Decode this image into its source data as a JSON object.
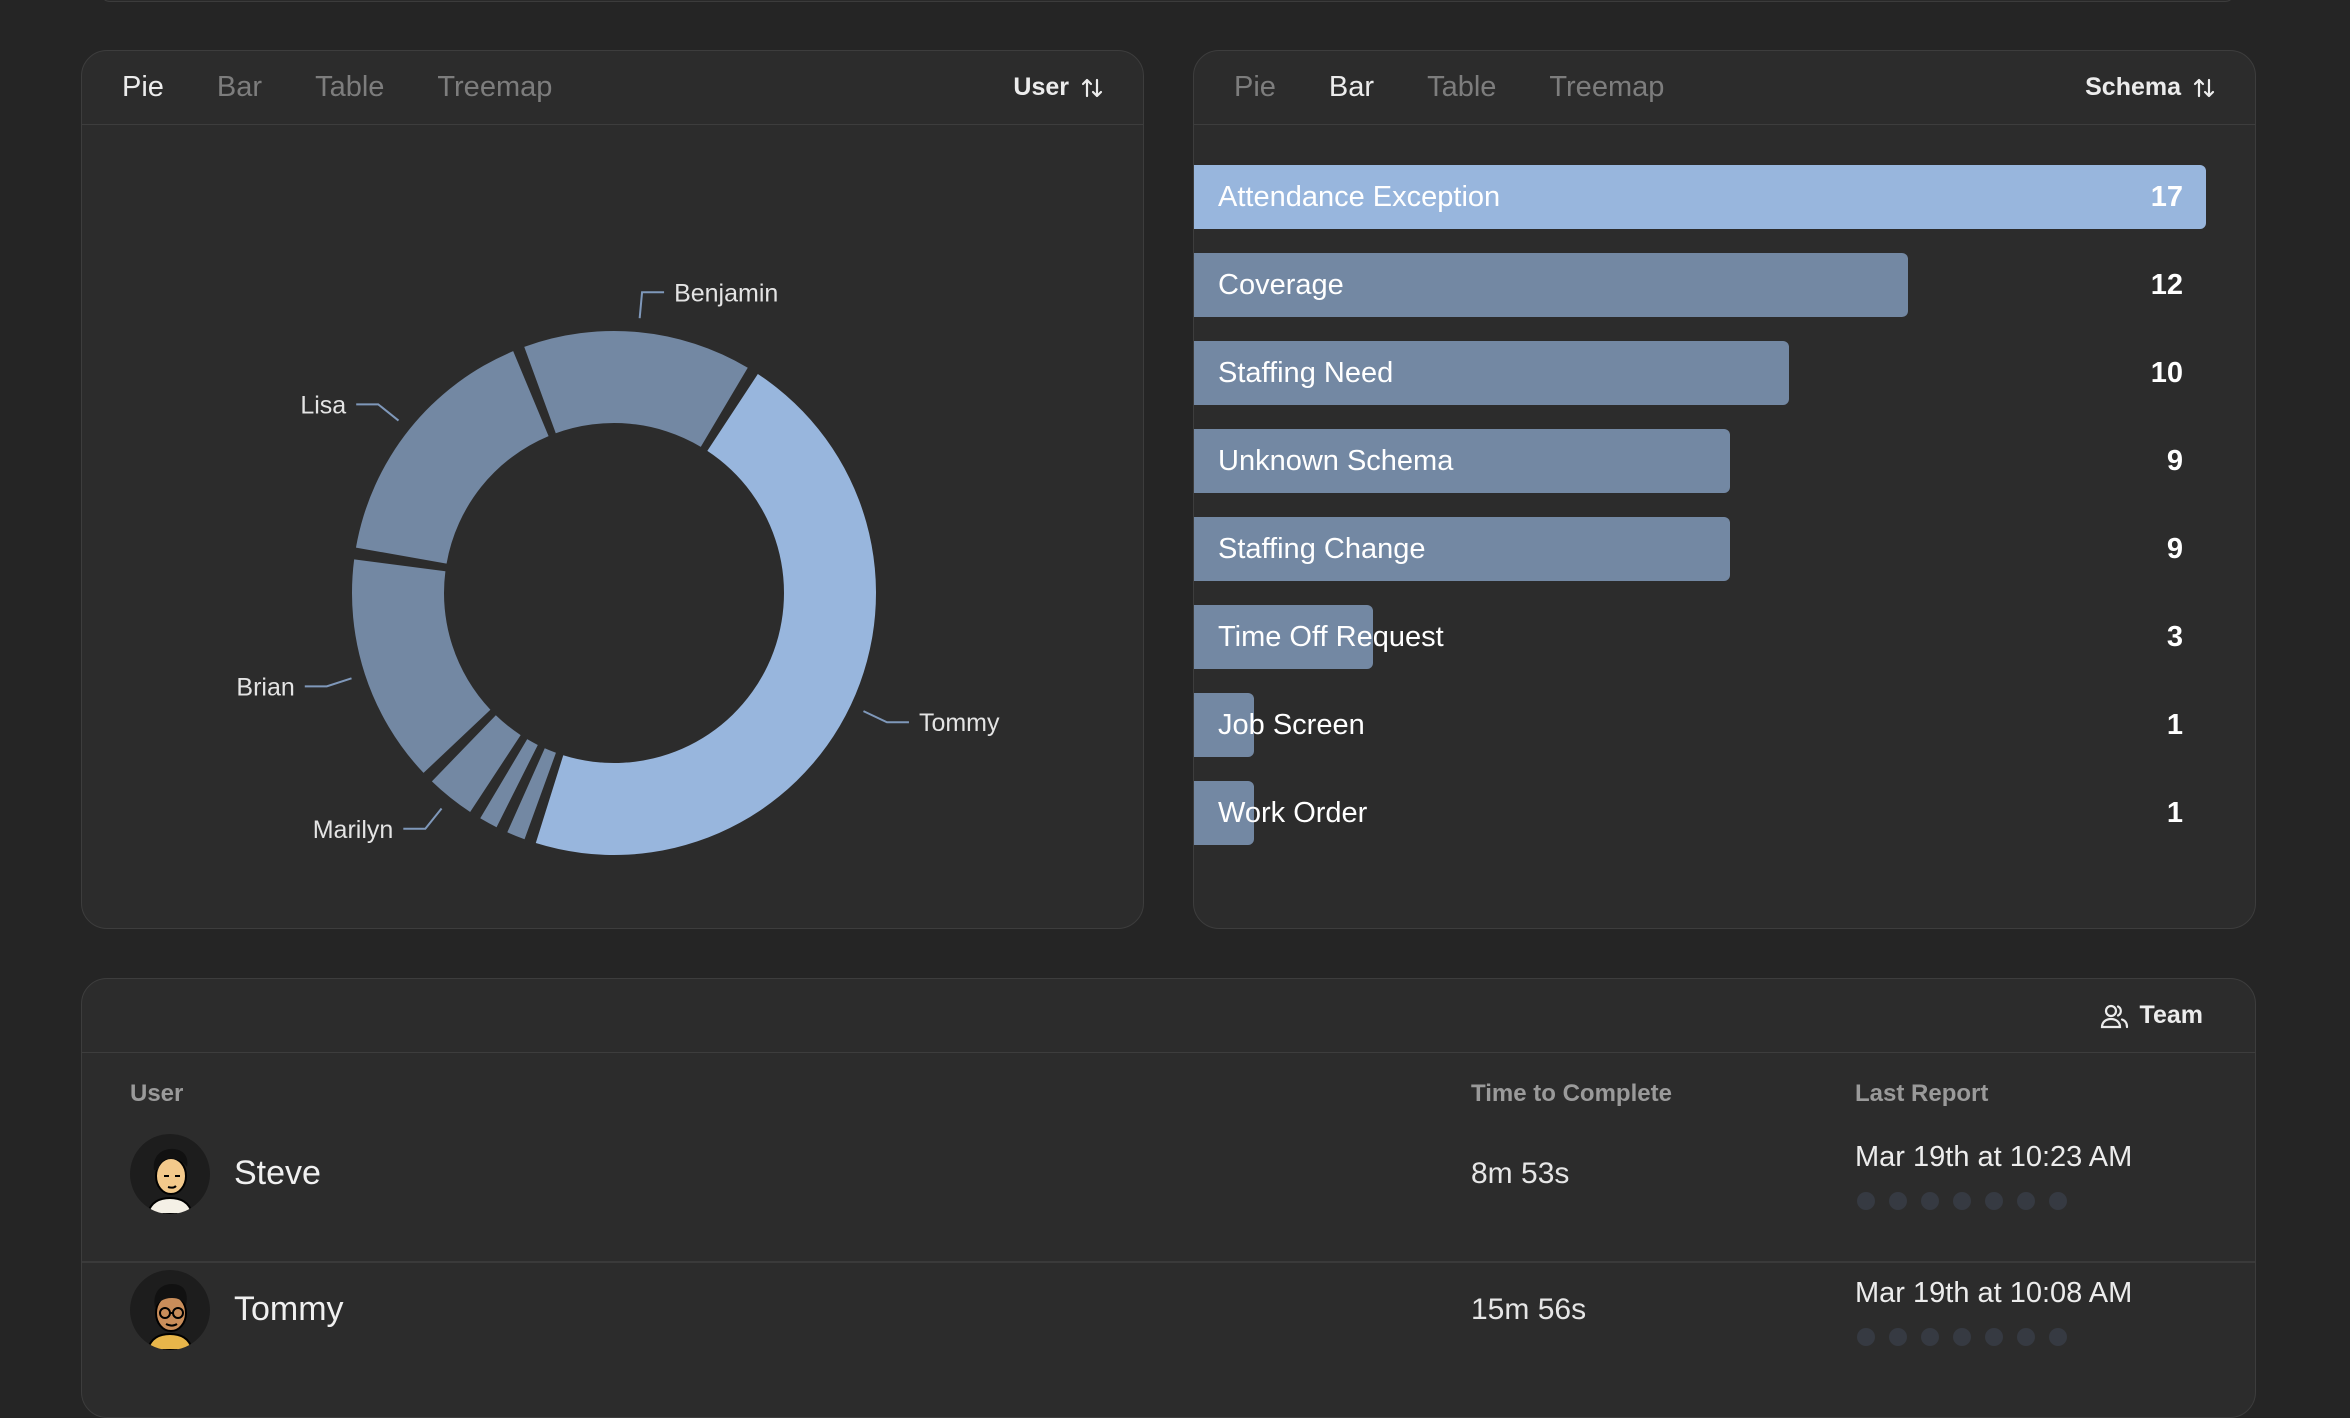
{
  "pie_panel": {
    "tabs": [
      "Pie",
      "Bar",
      "Table",
      "Treemap"
    ],
    "active_tab": 0,
    "sort_label": "User",
    "chart_data": {
      "type": "pie",
      "style": "donut",
      "slices": [
        {
          "label": "Tommy",
          "value": 25,
          "color": "#98b6dd",
          "labeled": true
        },
        {
          "label": "",
          "value": 1,
          "color": "#7388a3",
          "labeled": false
        },
        {
          "label": "",
          "value": 1,
          "color": "#7388a3",
          "labeled": false
        },
        {
          "label": "Marilyn",
          "value": 2,
          "color": "#7388a3",
          "labeled": true
        },
        {
          "label": "Brian",
          "value": 8,
          "color": "#7388a3",
          "labeled": true
        },
        {
          "label": "Lisa",
          "value": 9,
          "color": "#7388a3",
          "labeled": true
        },
        {
          "label": "Benjamin",
          "value": 8,
          "color": "#7388a3",
          "labeled": true
        }
      ],
      "start_angle_deg": 32
    }
  },
  "bar_panel": {
    "tabs": [
      "Pie",
      "Bar",
      "Table",
      "Treemap"
    ],
    "active_tab": 1,
    "sort_label": "Schema",
    "chart_data": {
      "type": "bar",
      "orientation": "horizontal",
      "categories": [
        "Attendance Exception",
        "Coverage",
        "Staffing Need",
        "Unknown Schema",
        "Staffing Change",
        "Time Off Request",
        "Job Screen",
        "Work Order"
      ],
      "values": [
        17,
        12,
        10,
        9,
        9,
        3,
        1,
        1
      ],
      "highlight_color": "#98b6dd",
      "bar_color": "#7388a3"
    }
  },
  "team_panel": {
    "team_label": "Team",
    "columns": {
      "user": "User",
      "time": "Time to Complete",
      "last": "Last Report"
    },
    "rows": [
      {
        "name": "Steve",
        "time": "8m 53s",
        "last_report": "Mar 19th at 10:23 AM"
      },
      {
        "name": "Tommy",
        "time": "15m 56s",
        "last_report": "Mar 19th at 10:08 AM"
      }
    ]
  }
}
